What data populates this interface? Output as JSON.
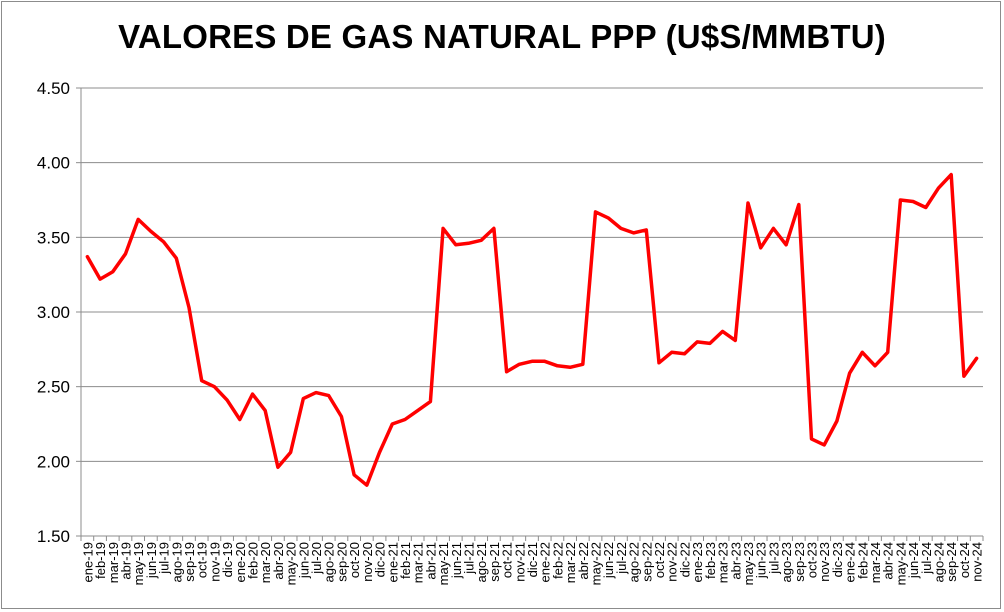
{
  "chart_data": {
    "type": "line",
    "title": "VALORES DE GAS NATURAL PPP (U$S/MMBTU)",
    "xlabel": "",
    "ylabel": "",
    "ylim": [
      1.5,
      4.5
    ],
    "yticks": [
      "1.50",
      "2.00",
      "2.50",
      "3.00",
      "3.50",
      "4.00",
      "4.50"
    ],
    "grid": "horizontal",
    "legend": "none",
    "line_color": "#ff0000",
    "categories": [
      "ene-19",
      "feb-19",
      "mar-19",
      "abr-19",
      "may-19",
      "jun-19",
      "jul-19",
      "ago-19",
      "sep-19",
      "oct-19",
      "nov-19",
      "dic-19",
      "ene-20",
      "feb-20",
      "mar-20",
      "abr-20",
      "may-20",
      "jun-20",
      "jul-20",
      "ago-20",
      "sep-20",
      "oct-20",
      "nov-20",
      "dic-20",
      "ene-21",
      "feb-21",
      "mar-21",
      "abr-21",
      "may-21",
      "jun-21",
      "jul-21",
      "ago-21",
      "sep-21",
      "oct-21",
      "nov-21",
      "dic-21",
      "ene-22",
      "feb-22",
      "mar-22",
      "abr-22",
      "may-22",
      "jun-22",
      "jul-22",
      "ago-22",
      "sep-22",
      "oct-22",
      "nov-22",
      "dic-22",
      "ene-23",
      "feb-23",
      "mar-23",
      "abr-23",
      "may-23",
      "jun-23",
      "jul-23",
      "ago-23",
      "sep-23",
      "oct-23",
      "nov-23",
      "dic-23",
      "ene-24",
      "feb-24",
      "mar-24",
      "abr-24",
      "may-24",
      "jun-24",
      "jul-24",
      "ago-24",
      "sep-24",
      "oct-24",
      "nov-24"
    ],
    "series": [
      {
        "values": [
          3.37,
          3.22,
          3.27,
          3.39,
          3.62,
          3.54,
          3.47,
          3.36,
          3.03,
          2.54,
          2.5,
          2.41,
          2.28,
          2.45,
          2.34,
          1.96,
          2.06,
          2.42,
          2.46,
          2.44,
          2.3,
          1.91,
          1.84,
          2.06,
          2.25,
          2.28,
          2.34,
          2.4,
          3.56,
          3.45,
          3.46,
          3.48,
          3.56,
          2.6,
          2.65,
          2.67,
          2.67,
          2.64,
          2.63,
          2.65,
          3.67,
          3.63,
          3.56,
          3.53,
          3.55,
          2.66,
          2.73,
          2.72,
          2.8,
          2.79,
          2.87,
          2.81,
          3.73,
          3.43,
          3.56,
          3.45,
          3.72,
          2.15,
          2.11,
          2.27,
          2.59,
          2.73,
          2.64,
          2.73,
          3.75,
          3.74,
          3.7,
          3.83,
          3.92,
          2.57,
          2.69
        ]
      }
    ]
  }
}
